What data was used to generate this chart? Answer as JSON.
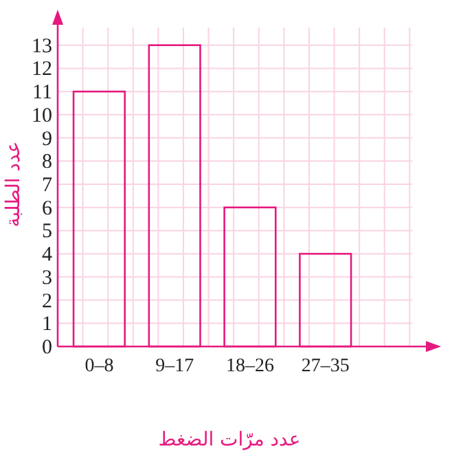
{
  "chart_data": {
    "type": "bar",
    "xlabel": "عدد مرّات الضغط",
    "ylabel": "عدد الطلبة",
    "categories": [
      "0–8",
      "9–17",
      "18–26",
      "27–35"
    ],
    "values": [
      11,
      13,
      6,
      4
    ],
    "color": "#e6197f",
    "ylim": [
      0,
      14
    ],
    "yticks": [
      0,
      1,
      2,
      3,
      4,
      5,
      6,
      7,
      8,
      9,
      10,
      11,
      12,
      13
    ],
    "grid": true
  }
}
